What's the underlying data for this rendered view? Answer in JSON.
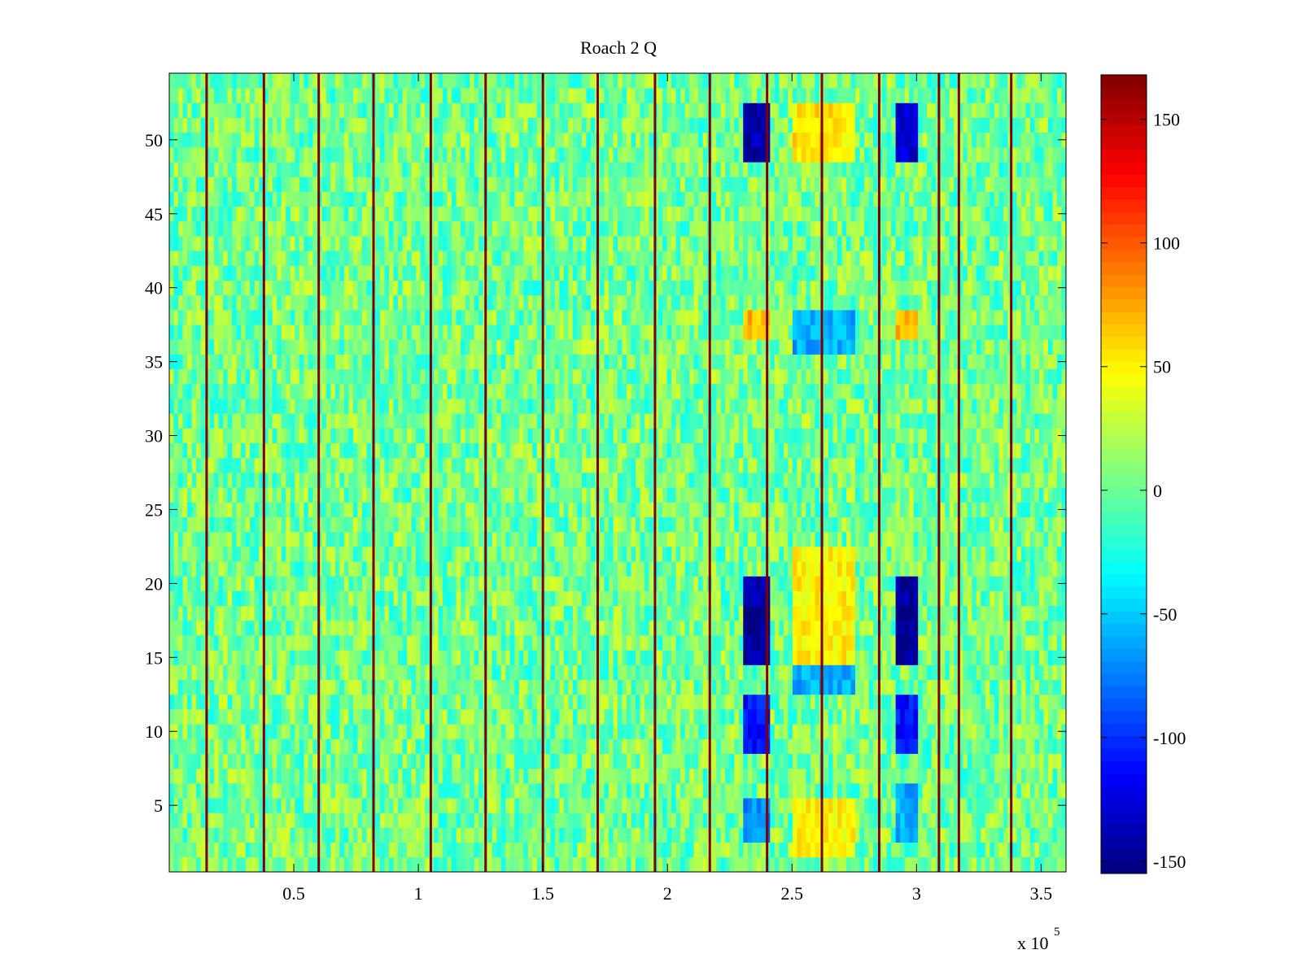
{
  "chart_data": {
    "type": "heatmap",
    "title": "Roach 2 Q",
    "x_exponent_label": "x 10",
    "x_exponent_power": "5",
    "x_scale": 100000,
    "xlim": [
      0,
      360000
    ],
    "ylim": [
      0.5,
      54.5
    ],
    "rows": 54,
    "x_ticks": [
      0.5,
      1,
      1.5,
      2,
      2.5,
      3,
      3.5
    ],
    "x_tick_labels": [
      "0.5",
      "1",
      "1.5",
      "2",
      "2.5",
      "3",
      "3.5"
    ],
    "y_ticks": [
      5,
      10,
      15,
      20,
      25,
      30,
      35,
      40,
      45,
      50
    ],
    "y_tick_labels": [
      "5",
      "10",
      "15",
      "20",
      "25",
      "30",
      "35",
      "40",
      "45",
      "50"
    ],
    "colorbar": {
      "colormap": "jet",
      "clim": [
        -155,
        168
      ],
      "ticks": [
        150,
        100,
        50,
        0,
        -50,
        -100,
        -150
      ],
      "tick_labels": [
        "150",
        "100",
        "50",
        "0",
        "-50",
        "-100",
        "-150"
      ]
    },
    "background_value_range": [
      -30,
      35
    ],
    "stripe_x_positions": [
      15000,
      38000,
      60000,
      82000,
      105000,
      127000,
      150000,
      172000,
      195000,
      217000,
      240000,
      262000,
      285000,
      309000,
      317000,
      338000
    ],
    "stripe_value": 168,
    "regions": [
      {
        "x": [
          231000,
          241000
        ],
        "y": [
          49,
          52
        ],
        "value": -140
      },
      {
        "x": [
          231000,
          241000
        ],
        "y": [
          15,
          20
        ],
        "value": -145
      },
      {
        "x": [
          231000,
          241000
        ],
        "y": [
          9,
          12
        ],
        "value": -110
      },
      {
        "x": [
          231000,
          241000
        ],
        "y": [
          3,
          5
        ],
        "value": -70
      },
      {
        "x": [
          291000,
          301000
        ],
        "y": [
          49,
          52
        ],
        "value": -130
      },
      {
        "x": [
          291000,
          301000
        ],
        "y": [
          15,
          20
        ],
        "value": -145
      },
      {
        "x": [
          291000,
          301000
        ],
        "y": [
          9,
          12
        ],
        "value": -110
      },
      {
        "x": [
          291000,
          301000
        ],
        "y": [
          3,
          6
        ],
        "value": -60
      },
      {
        "x": [
          251000,
          275000
        ],
        "y": [
          49,
          52
        ],
        "value": 55
      },
      {
        "x": [
          251000,
          275000
        ],
        "y": [
          15,
          22
        ],
        "value": 50
      },
      {
        "x": [
          251000,
          275000
        ],
        "y": [
          2,
          5
        ],
        "value": 50
      },
      {
        "x": [
          251000,
          275000
        ],
        "y": [
          36,
          38
        ],
        "value": -60
      },
      {
        "x": [
          251000,
          275000
        ],
        "y": [
          13,
          14
        ],
        "value": -60
      },
      {
        "x": [
          231000,
          241000
        ],
        "y": [
          37,
          38
        ],
        "value": 70
      },
      {
        "x": [
          291000,
          301000
        ],
        "y": [
          37,
          38
        ],
        "value": 70
      }
    ]
  }
}
